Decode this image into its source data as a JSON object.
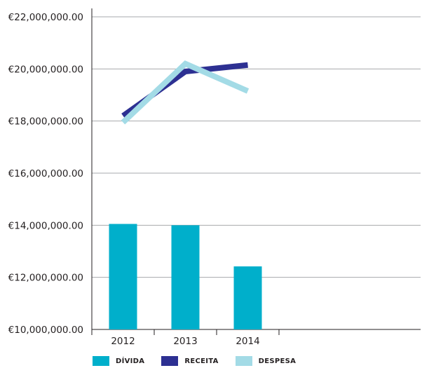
{
  "chart_data": {
    "type": "bar",
    "categories": [
      "2012",
      "2013",
      "2014"
    ],
    "y_ticks": [
      "€10,000,000.00",
      "€12,000,000.00",
      "€14,000,000.00",
      "€16,000,000.00",
      "€18,000,000.00",
      "€20,000,000.00",
      "€22,000,000.00"
    ],
    "ylim": [
      10000000,
      22000000
    ],
    "grid": true,
    "legend_position": "bottom-left",
    "series": [
      {
        "name": "DÍVIDA",
        "type": "bar",
        "color": "#00afcb",
        "values": [
          14050000,
          14000000,
          12420000
        ]
      },
      {
        "name": "RECEITA",
        "type": "line",
        "color": "#2d3092",
        "values": [
          18200000,
          19900000,
          20150000
        ]
      },
      {
        "name": "DESPESA",
        "type": "line",
        "color": "#a3dbe6",
        "values": [
          17950000,
          20200000,
          19150000
        ]
      }
    ]
  }
}
